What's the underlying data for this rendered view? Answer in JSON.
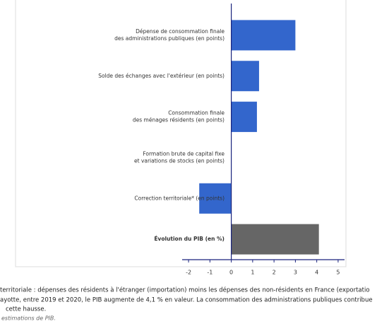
{
  "chart_data": {
    "type": "bar",
    "orientation": "horizontal",
    "categories": [
      [
        "Dépense de consommation finale",
        "des administrations publiques (en points)"
      ],
      [
        "Solde des échanges avec l'extérieur (en points)"
      ],
      [
        "Consommation finale",
        "des ménages résidents (en points)"
      ],
      [
        "Formation brute de capital fixe",
        "et variations de stocks (en points)"
      ],
      [
        "Correction territoriale* (en points)"
      ],
      [
        "Évolution du PIB (en %)"
      ]
    ],
    "values": [
      3.0,
      1.3,
      1.2,
      0,
      -1.5,
      4.1
    ],
    "colors": [
      "#3366cc",
      "#3366cc",
      "#3366cc",
      "#3366cc",
      "#3366cc",
      "#666666"
    ],
    "xlim": [
      -2.3,
      5.3
    ],
    "xticks": [
      -2,
      -1,
      0,
      1,
      2,
      3,
      4,
      5
    ]
  },
  "notes": [
    "territoriale : dépenses des résidents à l'étranger (importation) moins les dépenses des non-résidents en France (exportatio",
    "ayotte, entre 2019 et 2020, le PIB augmente de 4,1 % en valeur. La consommation des administrations publiques contribue",
    "cette hausse.",
    "estimations de PIB."
  ]
}
